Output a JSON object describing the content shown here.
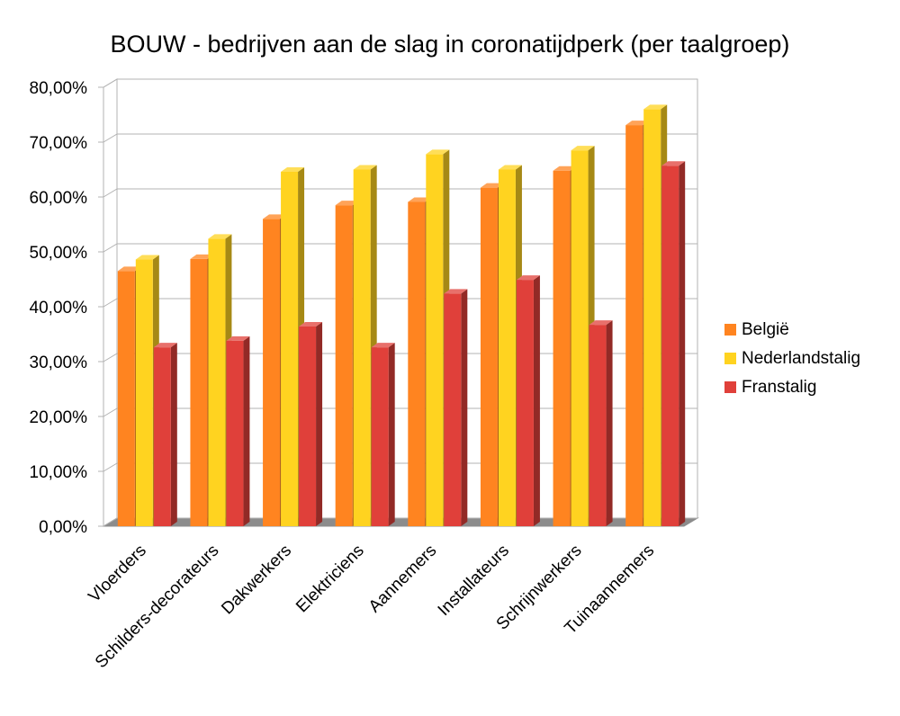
{
  "chart_data": {
    "type": "bar",
    "title": "BOUW - bedrijven aan de slag in coronatijdperk (per taalgroep)",
    "xlabel": "",
    "ylabel": "",
    "ylim": [
      0,
      80
    ],
    "yticks": [
      0,
      10,
      20,
      30,
      40,
      50,
      60,
      70,
      80
    ],
    "ytick_labels": [
      "0,00%",
      "10,00%",
      "20,00%",
      "30,00%",
      "40,00%",
      "50,00%",
      "60,00%",
      "70,00%",
      "80,00%"
    ],
    "grid": true,
    "legend_position": "right",
    "style": "3d",
    "categories": [
      "Vloerders",
      "Schilders-decorateurs",
      "Dakwerkers",
      "Elektriciens",
      "Aannemers",
      "Installateurs",
      "Schrijnwerkers",
      "Tuinaannemers"
    ],
    "series": [
      {
        "name": "België",
        "color": "#ff8420",
        "values": [
          46.5,
          48.7,
          56.0,
          58.5,
          59.1,
          61.7,
          64.8,
          73.1
        ]
      },
      {
        "name": "Nederlandstalig",
        "color": "#ffd320",
        "values": [
          48.6,
          52.4,
          64.6,
          65.0,
          67.8,
          65.0,
          68.5,
          76.0
        ]
      },
      {
        "name": "Franstalig",
        "color": "#e0403a",
        "values": [
          32.6,
          33.8,
          36.4,
          32.6,
          42.4,
          44.9,
          36.7,
          65.7
        ]
      }
    ]
  }
}
